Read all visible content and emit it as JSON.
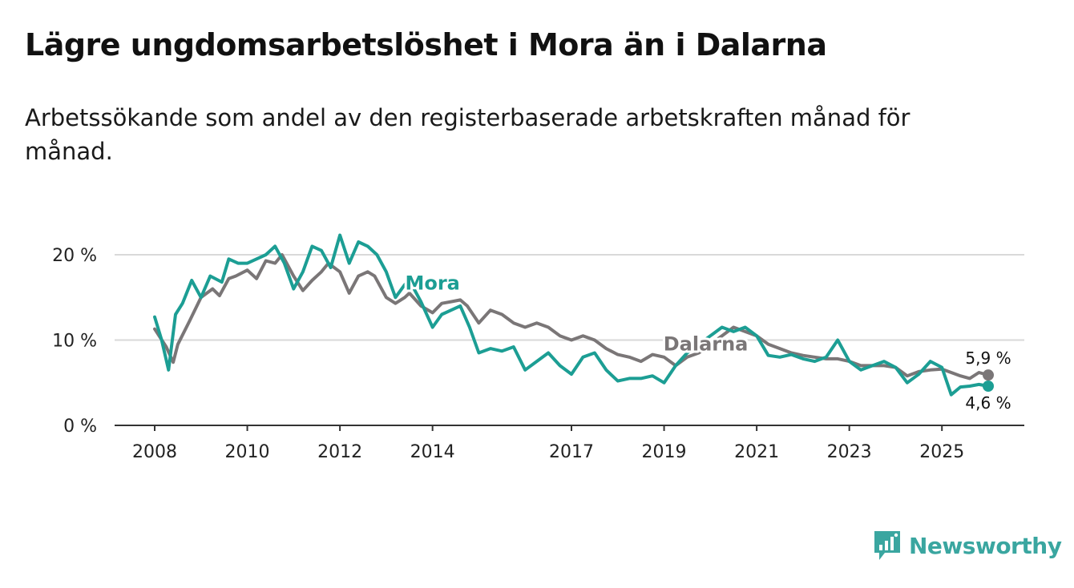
{
  "header": {
    "title": "Lägre ungdomsarbetslöshet i Mora än i Dalarna",
    "subtitle": "Arbetssökande som andel av den registerbaserade arbetskraften månad för månad."
  },
  "brand": {
    "name": "Newsworthy",
    "icon": "newsworthy-logo-icon",
    "color": "#3aa6a0"
  },
  "chart_data": {
    "type": "line",
    "title": "Lägre ungdomsarbetslöshet i Mora än i Dalarna",
    "subtitle": "Arbetssökande som andel av den registerbaserade arbetskraften månad för månad.",
    "xlabel": "",
    "ylabel": "",
    "xlim": [
      2008.0,
      2026.0
    ],
    "ylim": [
      0,
      22
    ],
    "grid": true,
    "yticks": [
      {
        "value": 0,
        "label": "0 %"
      },
      {
        "value": 10,
        "label": "10 %"
      },
      {
        "value": 20,
        "label": "20 %"
      }
    ],
    "xticks": [
      {
        "value": 2008,
        "label": "2008"
      },
      {
        "value": 2010,
        "label": "2010"
      },
      {
        "value": 2012,
        "label": "2012"
      },
      {
        "value": 2014,
        "label": "2014"
      },
      {
        "value": 2017,
        "label": "2017"
      },
      {
        "value": 2019,
        "label": "2019"
      },
      {
        "value": 2021,
        "label": "2021"
      },
      {
        "value": 2023,
        "label": "2023"
      },
      {
        "value": 2025,
        "label": "2025"
      }
    ],
    "series": [
      {
        "name": "Dalarna",
        "color": "#7a7677",
        "end_label": "5,9 %",
        "x": [
          2008.0,
          2008.25,
          2008.4,
          2008.5,
          2008.75,
          2009.0,
          2009.25,
          2009.4,
          2009.6,
          2009.75,
          2010.0,
          2010.2,
          2010.4,
          2010.6,
          2010.75,
          2011.0,
          2011.2,
          2011.4,
          2011.6,
          2011.75,
          2012.0,
          2012.2,
          2012.4,
          2012.6,
          2012.75,
          2013.0,
          2013.2,
          2013.4,
          2013.5,
          2013.75,
          2014.0,
          2014.2,
          2014.4,
          2014.6,
          2014.75,
          2015.0,
          2015.25,
          2015.5,
          2015.75,
          2016.0,
          2016.25,
          2016.5,
          2016.75,
          2017.0,
          2017.25,
          2017.5,
          2017.75,
          2018.0,
          2018.25,
          2018.5,
          2018.75,
          2019.0,
          2019.25,
          2019.5,
          2019.75,
          2020.0,
          2020.25,
          2020.5,
          2020.75,
          2021.0,
          2021.25,
          2021.5,
          2021.75,
          2022.0,
          2022.25,
          2022.5,
          2022.75,
          2023.0,
          2023.25,
          2023.5,
          2023.75,
          2024.0,
          2024.25,
          2024.5,
          2024.75,
          2025.0,
          2025.2,
          2025.4,
          2025.6,
          2025.8,
          2026.0
        ],
        "values": [
          11.3,
          9.2,
          7.4,
          9.5,
          12.2,
          15.0,
          16.0,
          15.2,
          17.2,
          17.5,
          18.2,
          17.2,
          19.3,
          19.0,
          20.0,
          17.5,
          15.8,
          17.0,
          18.0,
          19.0,
          18.0,
          15.5,
          17.5,
          18.0,
          17.5,
          15.0,
          14.3,
          15.0,
          15.5,
          14.0,
          13.2,
          14.3,
          14.5,
          14.7,
          14.0,
          12.0,
          13.5,
          13.0,
          12.0,
          11.5,
          12.0,
          11.5,
          10.5,
          10.0,
          10.5,
          10.0,
          9.0,
          8.3,
          8.0,
          7.5,
          8.3,
          8.0,
          7.0,
          8.0,
          8.5,
          9.5,
          10.5,
          11.5,
          11.0,
          10.5,
          9.5,
          9.0,
          8.5,
          8.2,
          8.0,
          7.8,
          7.8,
          7.5,
          7.0,
          7.0,
          7.0,
          6.8,
          5.8,
          6.3,
          6.5,
          6.6,
          6.2,
          5.8,
          5.5,
          6.2,
          5.9
        ]
      },
      {
        "name": "Mora",
        "color": "#1c9e94",
        "end_label": "4,6 %",
        "x": [
          2008.0,
          2008.15,
          2008.3,
          2008.45,
          2008.6,
          2008.8,
          2009.0,
          2009.2,
          2009.45,
          2009.6,
          2009.8,
          2010.0,
          2010.2,
          2010.4,
          2010.6,
          2010.8,
          2011.0,
          2011.2,
          2011.4,
          2011.6,
          2011.8,
          2012.0,
          2012.2,
          2012.4,
          2012.6,
          2012.8,
          2013.0,
          2013.2,
          2013.4,
          2013.5,
          2013.75,
          2014.0,
          2014.2,
          2014.4,
          2014.6,
          2014.8,
          2015.0,
          2015.25,
          2015.5,
          2015.75,
          2016.0,
          2016.25,
          2016.5,
          2016.75,
          2017.0,
          2017.25,
          2017.5,
          2017.75,
          2018.0,
          2018.25,
          2018.5,
          2018.75,
          2019.0,
          2019.25,
          2019.5,
          2019.75,
          2020.0,
          2020.25,
          2020.5,
          2020.75,
          2021.0,
          2021.25,
          2021.5,
          2021.75,
          2022.0,
          2022.25,
          2022.5,
          2022.75,
          2023.0,
          2023.25,
          2023.5,
          2023.75,
          2024.0,
          2024.25,
          2024.5,
          2024.75,
          2025.0,
          2025.2,
          2025.4,
          2025.6,
          2025.8,
          2026.0
        ],
        "values": [
          12.7,
          10.0,
          6.5,
          13.0,
          14.3,
          17.0,
          15.0,
          17.5,
          16.8,
          19.5,
          19.0,
          19.0,
          19.5,
          20.0,
          21.0,
          19.0,
          16.0,
          18.0,
          21.0,
          20.5,
          18.5,
          22.3,
          19.0,
          21.5,
          21.0,
          20.0,
          18.0,
          15.0,
          16.5,
          17.0,
          14.5,
          11.5,
          13.0,
          13.5,
          14.0,
          11.5,
          8.5,
          9.0,
          8.7,
          9.2,
          6.5,
          7.5,
          8.5,
          7.0,
          6.0,
          8.0,
          8.5,
          6.5,
          5.2,
          5.5,
          5.5,
          5.8,
          5.0,
          7.0,
          8.5,
          9.5,
          10.5,
          11.5,
          11.0,
          11.5,
          10.5,
          8.2,
          8.0,
          8.3,
          7.8,
          7.5,
          8.0,
          10.0,
          7.5,
          6.5,
          7.0,
          7.5,
          6.8,
          5.0,
          6.0,
          7.5,
          6.8,
          3.6,
          4.5,
          4.6,
          4.8,
          4.6
        ]
      }
    ]
  }
}
